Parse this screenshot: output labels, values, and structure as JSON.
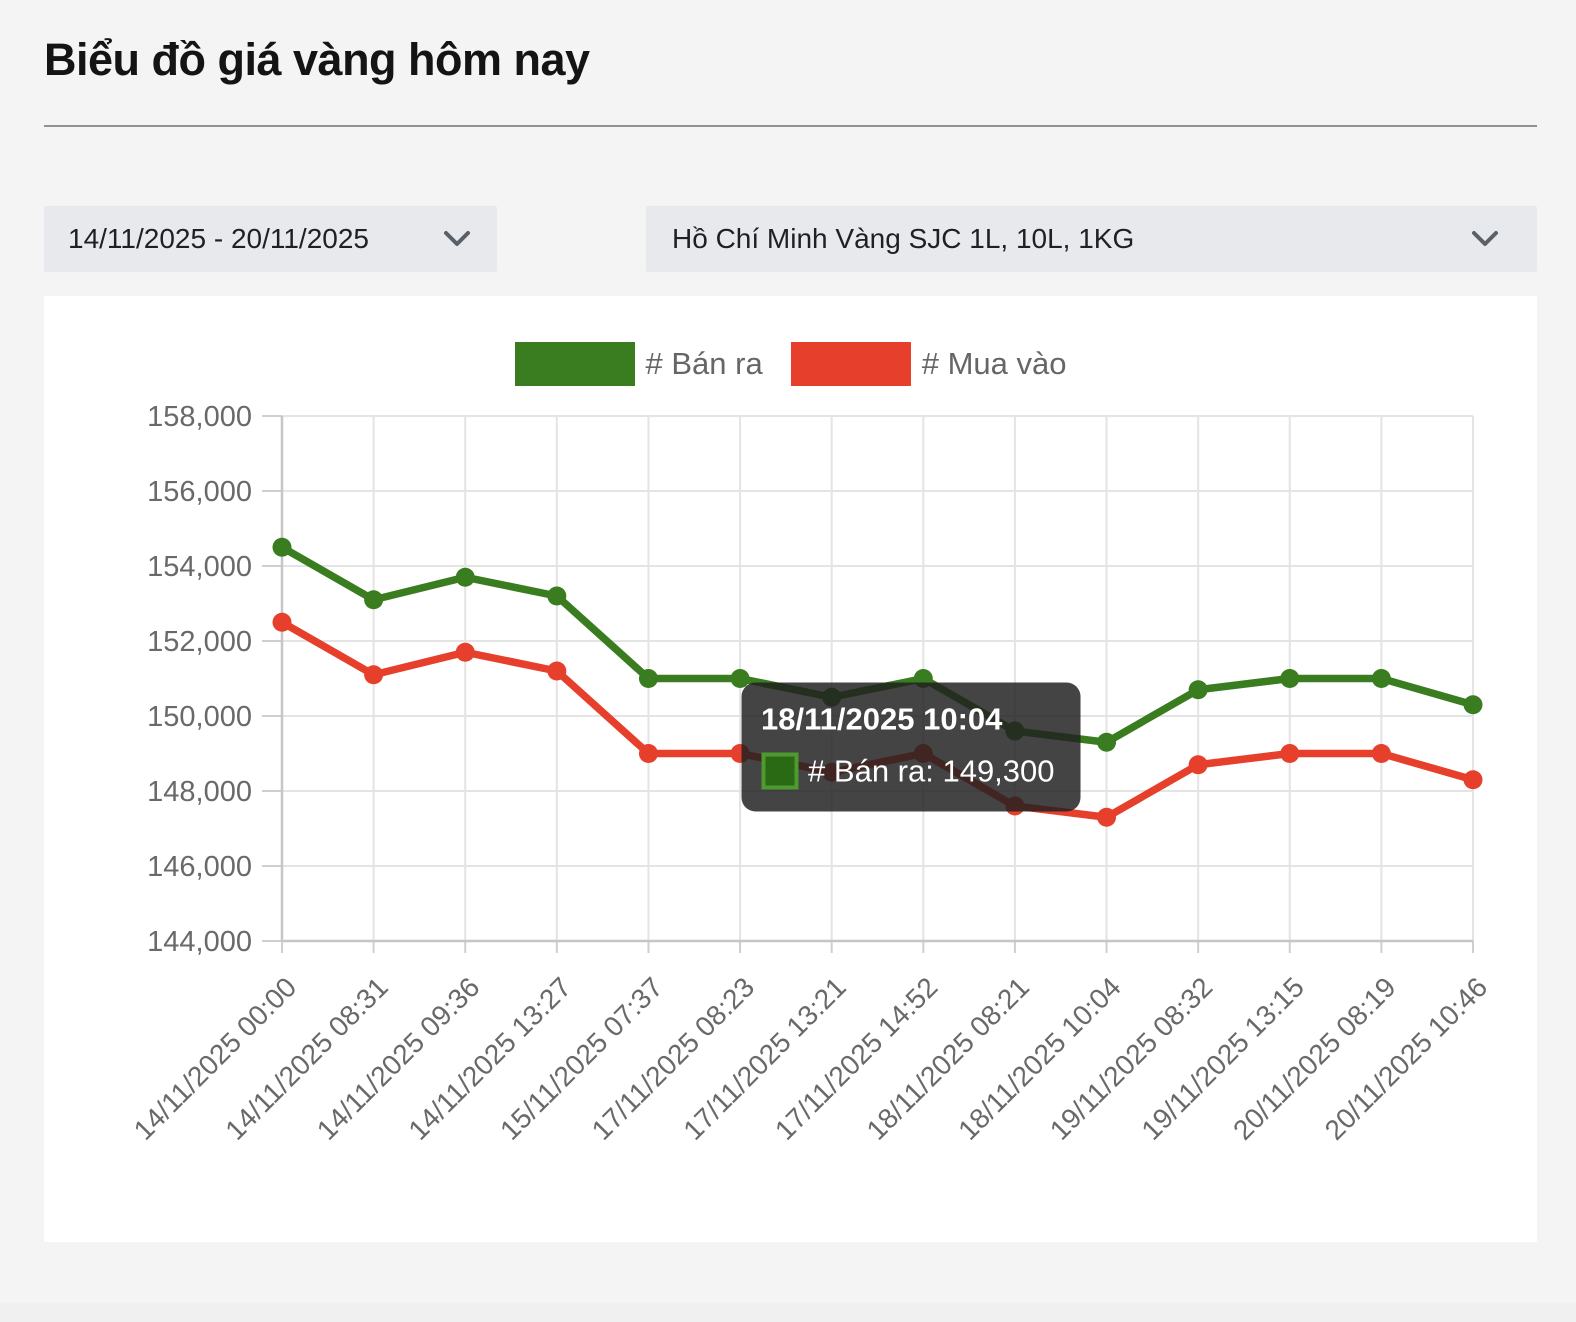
{
  "page": {
    "title": "Biểu đồ giá vàng hôm nay"
  },
  "filters": {
    "date_range": {
      "value": "14/11/2025 - 20/11/2025"
    },
    "product": {
      "value": "Hồ Chí Minh Vàng SJC 1L, 10L, 1KG"
    }
  },
  "chart_data": {
    "type": "line",
    "title": "",
    "categories": [
      "14/11/2025 00:00",
      "14/11/2025 08:31",
      "14/11/2025 09:36",
      "14/11/2025 13:27",
      "15/11/2025 07:37",
      "17/11/2025 08:23",
      "17/11/2025 13:21",
      "17/11/2025 14:52",
      "18/11/2025 08:21",
      "18/11/2025 10:04",
      "19/11/2025 08:32",
      "19/11/2025 13:15",
      "20/11/2025 08:19",
      "20/11/2025 10:46"
    ],
    "series": [
      {
        "name": "# Bán ra",
        "color": "#3a7d20",
        "values": [
          154500,
          153100,
          153700,
          153200,
          151000,
          151000,
          150500,
          151000,
          149600,
          149300,
          150700,
          151000,
          151000,
          150300
        ]
      },
      {
        "name": "# Mua vào",
        "color": "#e6402c",
        "values": [
          152500,
          151100,
          151700,
          151200,
          149000,
          149000,
          148500,
          149000,
          147600,
          147300,
          148700,
          149000,
          149000,
          148300
        ]
      }
    ],
    "ylim": [
      144000,
      158000
    ],
    "ytick_step": 2000,
    "grid": true,
    "legend_position": "top",
    "xlabel": "",
    "ylabel": "",
    "tooltip": {
      "title": "18/11/2025 10:04",
      "row_label": "# Bán ra: 149,300",
      "point_index": 9,
      "series_index": 0,
      "swatch_fill": "#2b6a15",
      "swatch_border": "#4e9a31"
    }
  }
}
